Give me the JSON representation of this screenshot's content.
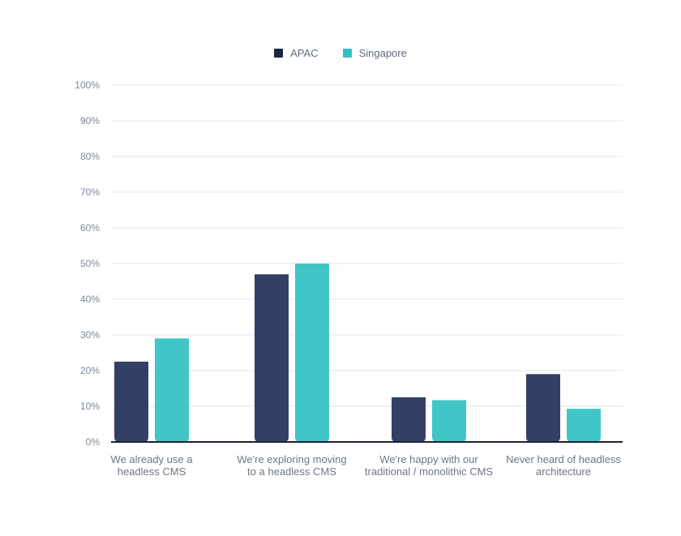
{
  "chart_data": {
    "type": "bar",
    "categories": [
      [
        "We already use a",
        "headless CMS"
      ],
      [
        "We're exploring moving",
        "to a headless CMS"
      ],
      [
        "We're happy with our",
        "traditional / monolithic CMS"
      ],
      [
        "Never heard of headless",
        "architecture"
      ]
    ],
    "series": [
      {
        "name": "APAC",
        "color": "#343f66",
        "values": [
          22.5,
          47,
          12.5,
          19
        ]
      },
      {
        "name": "Singapore",
        "color": "#40c6c6",
        "values": [
          29,
          50,
          11.7,
          9.3
        ]
      }
    ],
    "ylim": [
      0,
      100
    ],
    "yticks": [
      "0%",
      "10%",
      "20%",
      "30%",
      "40%",
      "50%",
      "60%",
      "70%",
      "80%",
      "90%",
      "100%"
    ],
    "grid": true,
    "legend": "top-center"
  }
}
